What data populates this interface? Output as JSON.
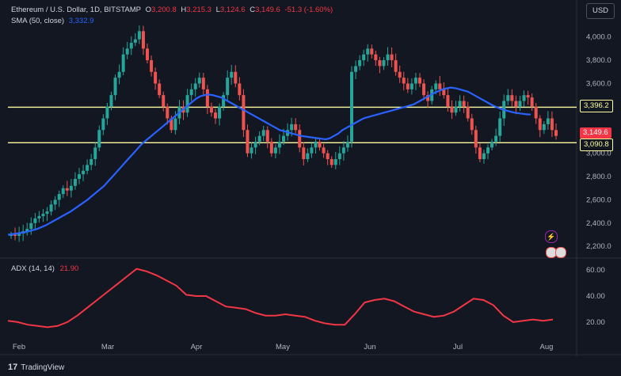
{
  "header": {
    "symbol": "Ethereum / U.S. Dollar, 1D, BITSTAMP",
    "open_label": "O",
    "open": "3,200.8",
    "high_label": "H",
    "high": "3,215.3",
    "low_label": "L",
    "low": "3,124.6",
    "close_label": "C",
    "close": "3,149.6",
    "change": "-51.3 (-1.60%)",
    "sma_label": "SMA (50, close)",
    "sma_value": "3,332.9",
    "adx_label": "ADX (14, 14)",
    "adx_value": "21.90",
    "currency": "USD"
  },
  "branding": {
    "name": "TradingView",
    "icon": "tradingview-logo-icon"
  },
  "price_tags": {
    "resistance": "3,396.2",
    "last": "3,149.6",
    "support": "3,090.8"
  },
  "colors": {
    "up": "#26a69a",
    "down": "#ef5350",
    "sma": "#2962ff",
    "adx": "#f23645",
    "levels": "#ffffa0",
    "background": "#131722"
  },
  "chart_data": [
    {
      "type": "candlestick",
      "title": "Ethereum / U.S. Dollar, 1D, BITSTAMP",
      "x_ticks": [
        "Feb",
        "Mar",
        "Apr",
        "May",
        "Jun",
        "Jul",
        "Aug"
      ],
      "y_ticks": [
        2200,
        2400,
        2600,
        2800,
        3000,
        3200,
        3400,
        3600,
        3800,
        4000
      ],
      "ylim": [
        2120,
        4100
      ],
      "grid": false,
      "horizontal_levels": [
        3396.2,
        3090.8
      ],
      "close_series": [
        2300,
        2290,
        2310,
        2330,
        2350,
        2400,
        2440,
        2460,
        2480,
        2500,
        2560,
        2600,
        2650,
        2700,
        2680,
        2720,
        2780,
        2820,
        2850,
        2900,
        2950,
        3050,
        3200,
        3300,
        3400,
        3500,
        3650,
        3700,
        3850,
        3900,
        3950,
        3980,
        4050,
        3900,
        3800,
        3700,
        3600,
        3500,
        3400,
        3300,
        3200,
        3300,
        3400,
        3350,
        3500,
        3550,
        3600,
        3650,
        3550,
        3400,
        3350,
        3300,
        3400,
        3500,
        3650,
        3700,
        3600,
        3500,
        3200,
        3000,
        3050,
        3100,
        3150,
        3200,
        3100,
        3000,
        3050,
        3100,
        3150,
        3200,
        3250,
        3200,
        3050,
        2950,
        3000,
        3050,
        3100,
        3050,
        3000,
        2950,
        2900,
        2950,
        3000,
        3050,
        3100,
        3700,
        3750,
        3800,
        3850,
        3900,
        3850,
        3800,
        3750,
        3800,
        3850,
        3800,
        3700,
        3650,
        3600,
        3550,
        3600,
        3650,
        3600,
        3500,
        3450,
        3550,
        3600,
        3550,
        3500,
        3400,
        3350,
        3400,
        3450,
        3400,
        3300,
        3200,
        3050,
        2950,
        3000,
        3050,
        3100,
        3150,
        3300,
        3450,
        3500,
        3450,
        3400,
        3450,
        3500,
        3480,
        3400,
        3300,
        3200,
        3250,
        3300,
        3200,
        3149.6
      ],
      "series": [
        {
          "name": "SMA (50, close)",
          "values": [
            2300,
            2305,
            2310,
            2315,
            2320,
            2330,
            2340,
            2350,
            2365,
            2380,
            2400,
            2420,
            2440,
            2460,
            2480,
            2500,
            2525,
            2550,
            2575,
            2600,
            2630,
            2660,
            2690,
            2720,
            2760,
            2800,
            2840,
            2880,
            2920,
            2960,
            3000,
            3040,
            3080,
            3110,
            3140,
            3170,
            3200,
            3230,
            3260,
            3290,
            3320,
            3350,
            3380,
            3410,
            3440,
            3470,
            3490,
            3500,
            3505,
            3500,
            3490,
            3480,
            3460,
            3440,
            3420,
            3400,
            3380,
            3360,
            3340,
            3320,
            3300,
            3280,
            3260,
            3240,
            3220,
            3200,
            3190,
            3180,
            3170,
            3160,
            3150,
            3145,
            3140,
            3135,
            3130,
            3125,
            3120,
            3130,
            3150,
            3170,
            3200,
            3220,
            3240,
            3260,
            3280,
            3300,
            3310,
            3320,
            3330,
            3340,
            3350,
            3360,
            3370,
            3380,
            3390,
            3400,
            3410,
            3420,
            3440,
            3460,
            3480,
            3500,
            3520,
            3535,
            3550,
            3560,
            3565,
            3560,
            3550,
            3540,
            3530,
            3510,
            3490,
            3470,
            3450,
            3430,
            3410,
            3395,
            3380,
            3370,
            3360,
            3350,
            3345,
            3340,
            3335,
            3332.9
          ]
        }
      ]
    },
    {
      "type": "line",
      "title": "ADX (14, 14)",
      "y_ticks": [
        20,
        40,
        60
      ],
      "ylim": [
        12,
        65
      ],
      "series": [
        {
          "name": "ADX (14, 14)",
          "values": [
            21,
            20,
            18,
            17,
            16,
            17,
            20,
            25,
            31,
            37,
            43,
            49,
            55,
            61,
            59,
            56,
            52,
            48,
            41,
            40,
            40,
            36,
            32,
            31,
            30,
            27,
            25,
            25,
            26,
            25,
            24,
            21,
            19,
            18,
            18,
            26,
            35,
            37,
            38,
            36,
            32,
            28,
            26,
            24,
            25,
            28,
            33,
            38,
            37,
            33,
            25,
            20,
            21,
            22,
            21,
            22
          ]
        }
      ]
    }
  ]
}
